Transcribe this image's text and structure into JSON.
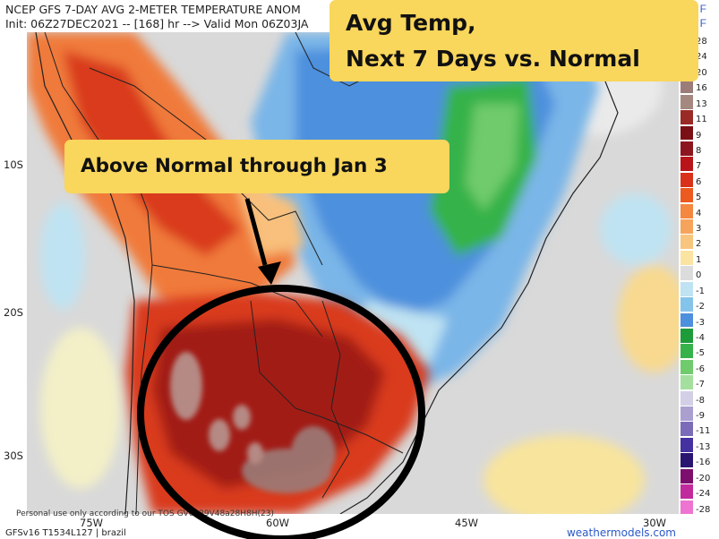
{
  "header": {
    "line1": "NCEP GFS 7-DAY AVG 2-METER TEMPERATURE ANOM",
    "line2": "Init: 06Z27DEC2021 -- [168] hr --> Valid Mon 06Z03JA",
    "unit": "F",
    "unit_2": "F"
  },
  "overlays": {
    "title_line1": "Avg Temp,",
    "title_line2": "Next 7 Days vs. Normal",
    "annotation": "Above Normal through Jan 3"
  },
  "axes": {
    "lat_labels": [
      "10S",
      "20S",
      "30S"
    ],
    "lon_labels": [
      "75W",
      "60W",
      "45W",
      "30W"
    ]
  },
  "colorbar": {
    "labels": [
      "28",
      "24",
      "20",
      "16",
      "13",
      "11",
      "9",
      "8",
      "7",
      "6",
      "5",
      "4",
      "3",
      "2",
      "1",
      "0",
      "-1",
      "-2",
      "-3",
      "-4",
      "-5",
      "-6",
      "-7",
      "-8",
      "-9",
      "-11",
      "-13",
      "-16",
      "-20",
      "-24",
      "-28"
    ],
    "colors": [
      "#fbd4c6",
      "#e6b8ae",
      "#b89590",
      "#9c7c78",
      "#a58880",
      "#9a2a26",
      "#7a1015",
      "#8d1520",
      "#b8141a",
      "#d9311a",
      "#ec5a1f",
      "#f48840",
      "#f6a45c",
      "#f8c57f",
      "#fbe3a2",
      "#dcdcdc",
      "#bfe3f2",
      "#85c4ea",
      "#4d90dd",
      "#1f9c3a",
      "#36b24a",
      "#70cb6c",
      "#a5df9f",
      "#d2cfe6",
      "#ab9fd0",
      "#7b6bb9",
      "#4631a1",
      "#2a1670",
      "#7e0e6d",
      "#c12a9c",
      "#ed74d0"
    ]
  },
  "footer": {
    "note": "Personal use only according to our TOS GV0029V48a28H8H(23)",
    "model": "GFSv16 T1534L127 | brazil",
    "brand": "weathermodels.com"
  },
  "map_colors": {
    "ocean": "#d9d9d9",
    "hot_dark": "#a21a15",
    "hot": "#d93a1c",
    "warm": "#f07a3a",
    "mild": "#f8c07c",
    "cool_light": "#bfe3f2",
    "cool": "#7ab6e8",
    "cold": "#3d7fd6",
    "green": "#2fa84a"
  }
}
